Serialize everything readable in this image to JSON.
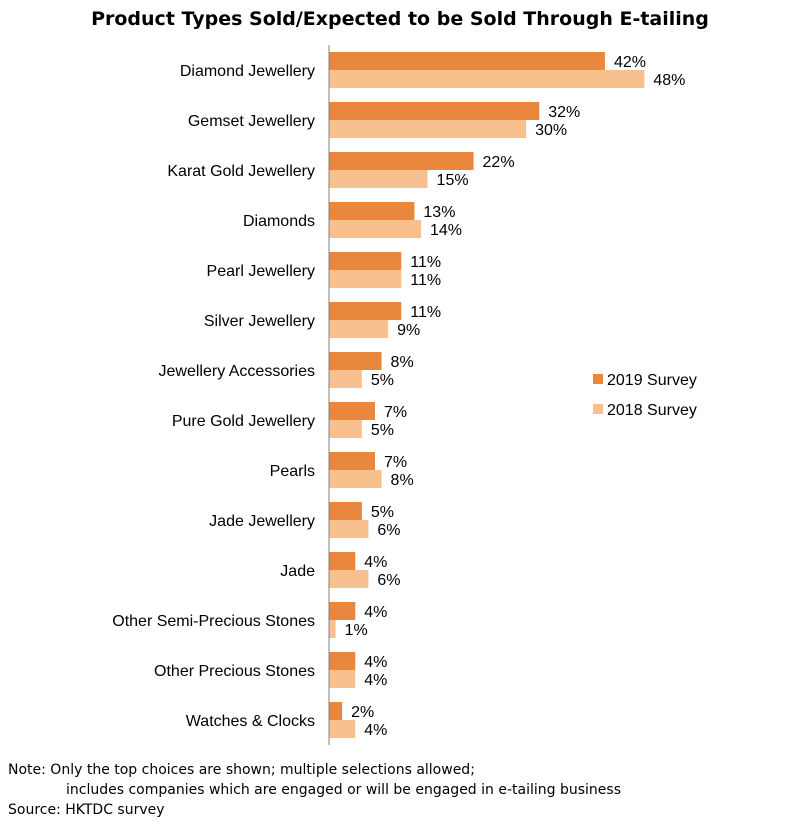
{
  "chart_data": {
    "type": "bar",
    "orientation": "horizontal",
    "title": "Product Types Sold/Expected to be Sold Through E-tailing",
    "categories": [
      "Diamond Jewellery",
      "Gemset Jewellery",
      "Karat Gold Jewellery",
      "Diamonds",
      "Pearl Jewellery",
      "Silver Jewellery",
      "Jewellery Accessories",
      "Pure Gold Jewellery",
      "Pearls",
      "Jade Jewellery",
      "Jade",
      "Other Semi-Precious Stones",
      "Other Precious Stones",
      "Watches & Clocks"
    ],
    "series": [
      {
        "name": "2019 Survey",
        "color": "#e8873d",
        "values": [
          42,
          32,
          22,
          13,
          11,
          11,
          8,
          7,
          7,
          5,
          4,
          4,
          4,
          2
        ]
      },
      {
        "name": "2018 Survey",
        "color": "#f8bf8f",
        "values": [
          48,
          30,
          15,
          14,
          11,
          9,
          5,
          5,
          8,
          6,
          6,
          1,
          4,
          4
        ]
      }
    ],
    "value_suffix": "%",
    "xlim": [
      0,
      50
    ],
    "grid": false,
    "legend_position": "right"
  },
  "footer": {
    "note_line1": "Note: Only the top choices are shown; multiple selections allowed;",
    "note_line2": "includes companies which are engaged or will be engaged in e-tailing business",
    "source": "Source: HKTDC survey"
  }
}
